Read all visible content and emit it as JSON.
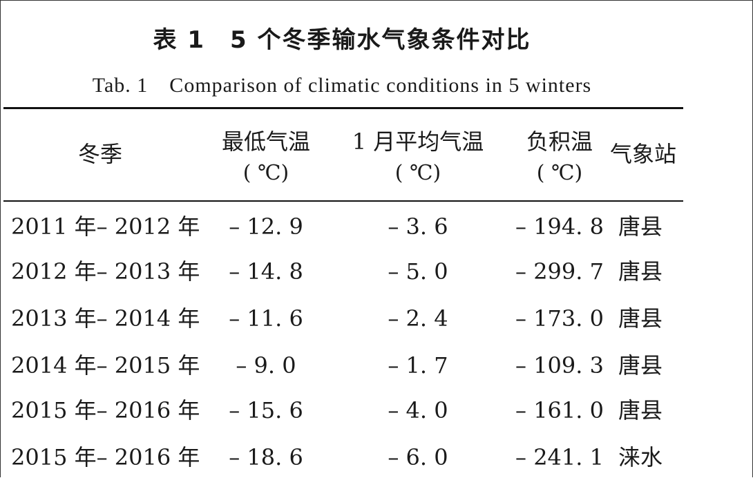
{
  "title_zh": "表 1　5 个冬季输水气象条件对比",
  "title_en": "Tab. 1　Comparison of climatic conditions in 5 winters",
  "headers": {
    "winter": "冬季",
    "min_temp": "最低气温",
    "min_temp_unit": "( ℃)",
    "jan_temp": "1 月平均气温",
    "jan_temp_unit": "( ℃)",
    "neg_accum": "负积温",
    "neg_accum_unit": "( ℃)",
    "station": "气象站"
  },
  "rows": [
    {
      "winter": "2011 年– 2012 年",
      "min_temp": "– 12. 9",
      "jan_temp": "– 3. 6",
      "neg_accum": "– 194. 8",
      "station": "唐县"
    },
    {
      "winter": "2012 年– 2013 年",
      "min_temp": "– 14. 8",
      "jan_temp": "– 5. 0",
      "neg_accum": "– 299. 7",
      "station": "唐县"
    },
    {
      "winter": "2013 年– 2014 年",
      "min_temp": "– 11. 6",
      "jan_temp": "– 2. 4",
      "neg_accum": "– 173. 0",
      "station": "唐县"
    },
    {
      "winter": "2014 年– 2015 年",
      "min_temp": "– 9. 0",
      "jan_temp": "– 1. 7",
      "neg_accum": "– 109. 3",
      "station": "唐县"
    },
    {
      "winter": "2015 年– 2016 年",
      "min_temp": "– 15. 6",
      "jan_temp": "– 4. 0",
      "neg_accum": "– 161. 0",
      "station": "唐县"
    },
    {
      "winter": "2015 年– 2016 年",
      "min_temp": "– 18. 6",
      "jan_temp": "– 6. 0",
      "neg_accum": "– 241. 1",
      "station": "涞水"
    }
  ]
}
